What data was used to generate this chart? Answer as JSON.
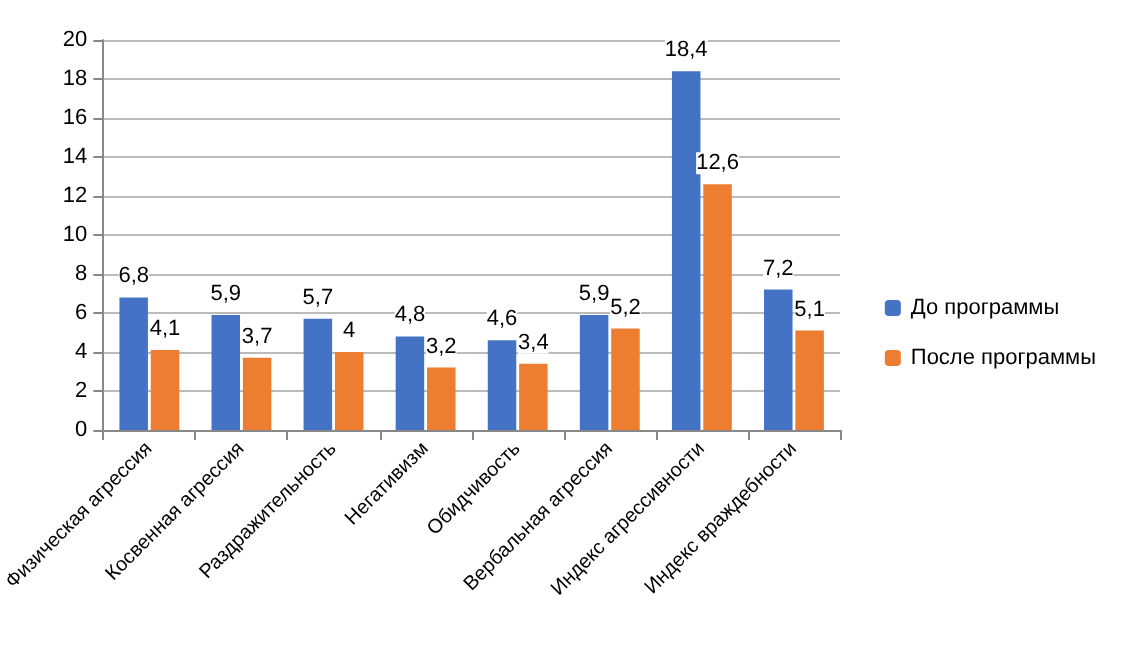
{
  "chart_data": {
    "type": "bar",
    "categories": [
      "Физическая агрессия",
      "Косвенная агрессия",
      "Раздражительность",
      "Негативизм",
      "Обидчивость",
      "Вербальная агрессия",
      "Индекс агрессивности",
      "Индекс враждебности"
    ],
    "series": [
      {
        "name": "До программы",
        "color": "#4472c4",
        "values": [
          6.8,
          5.9,
          5.7,
          4.8,
          4.6,
          5.9,
          18.4,
          7.2
        ],
        "value_labels": [
          "6,8",
          "5,9",
          "5,7",
          "4,8",
          "4,6",
          "5,9",
          "18,4",
          "7,2"
        ]
      },
      {
        "name": "После программы",
        "color": "#ed7d31",
        "values": [
          4.1,
          3.7,
          4,
          3.2,
          3.4,
          5.2,
          12.6,
          5.1
        ],
        "value_labels": [
          "4,1",
          "3,7",
          "4",
          "3,2",
          "3,4",
          "5,2",
          "12,6",
          "5,1"
        ]
      }
    ],
    "ylim": [
      0,
      20
    ],
    "yticks": [
      0,
      2,
      4,
      6,
      8,
      10,
      12,
      14,
      16,
      18,
      20
    ],
    "grid": "y",
    "legend": "right"
  }
}
